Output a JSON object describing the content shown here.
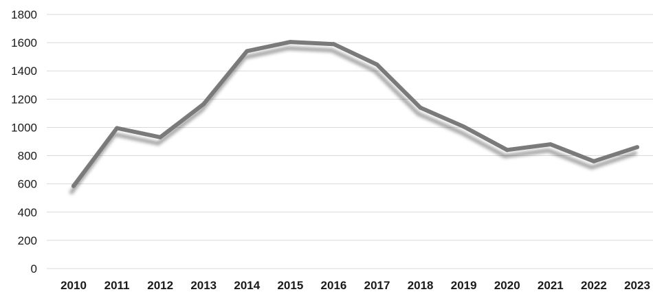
{
  "chart_data": {
    "type": "line",
    "title": "",
    "xlabel": "",
    "ylabel": "",
    "categories": [
      "2010",
      "2011",
      "2012",
      "2013",
      "2014",
      "2015",
      "2016",
      "2017",
      "2018",
      "2019",
      "2020",
      "2021",
      "2022",
      "2023"
    ],
    "series": [
      {
        "values": [
          585,
          995,
          930,
          1165,
          1540,
          1605,
          1590,
          1445,
          1140,
          1005,
          840,
          880,
          760,
          860
        ],
        "color": "#7a7a7a"
      }
    ],
    "ylim": [
      0,
      1800
    ],
    "yticks": [
      0,
      200,
      400,
      600,
      800,
      1000,
      1200,
      1400,
      1600,
      1800
    ],
    "grid": true,
    "legend": "none"
  }
}
